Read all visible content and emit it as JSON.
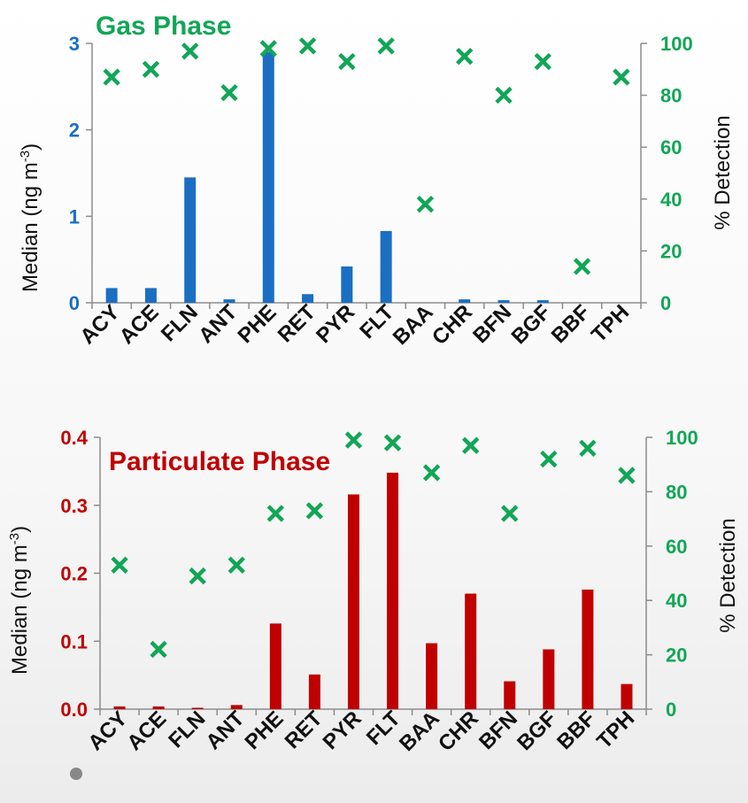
{
  "colors": {
    "gas": "#1a6fc2",
    "particulate": "#c00000",
    "detection": "#11a656"
  },
  "chart_data": [
    {
      "type": "bar",
      "title": "Gas Phase",
      "ylabel_main": "Median  (ng m",
      "ylabel_sup": "-3",
      "ylabel_end": ")",
      "y2label": "% Detection",
      "categories": [
        "ACY",
        "ACE",
        "FLN",
        "ANT",
        "PHE",
        "RET",
        "PYR",
        "FLT",
        "BAA",
        "CHR",
        "BFN",
        "BGF",
        "BBF",
        "TPH"
      ],
      "values": [
        0.17,
        0.17,
        1.45,
        0.04,
        2.9,
        0.1,
        0.42,
        0.83,
        0,
        0.04,
        0.03,
        0.03,
        0,
        0
      ],
      "detection": [
        87,
        90,
        97,
        81,
        98,
        99,
        93,
        99,
        38,
        95,
        80,
        93,
        14,
        87
      ],
      "ylim": [
        0,
        3
      ],
      "yticks": [
        "0",
        "1",
        "2",
        "3"
      ],
      "y2lim": [
        0,
        100
      ],
      "y2ticks": [
        "0",
        "20",
        "40",
        "60",
        "80",
        "100"
      ]
    },
    {
      "type": "bar",
      "title": "Particulate Phase",
      "ylabel_main": "Median (ng m",
      "ylabel_sup": "-3",
      "ylabel_end": ")",
      "y2label": "% Detection",
      "categories": [
        "ACY",
        "ACE",
        "FLN",
        "ANT",
        "PHE",
        "RET",
        "PYR",
        "FLT",
        "BAA",
        "CHR",
        "BFN",
        "BGF",
        "BBF",
        "TPH"
      ],
      "values": [
        0.004,
        0.004,
        0.002,
        0.006,
        0.126,
        0.051,
        0.316,
        0.348,
        0.097,
        0.17,
        0.041,
        0.088,
        0.176,
        0.037
      ],
      "detection": [
        53,
        22,
        49,
        53,
        72,
        73,
        99,
        98,
        87,
        97,
        72,
        92,
        96,
        86
      ],
      "ylim": [
        0,
        0.4
      ],
      "yticks": [
        "0.0",
        "0.1",
        "0.2",
        "0.3",
        "0.4"
      ],
      "y2lim": [
        0,
        100
      ],
      "y2ticks": [
        "0",
        "20",
        "40",
        "60",
        "80",
        "100"
      ]
    }
  ]
}
